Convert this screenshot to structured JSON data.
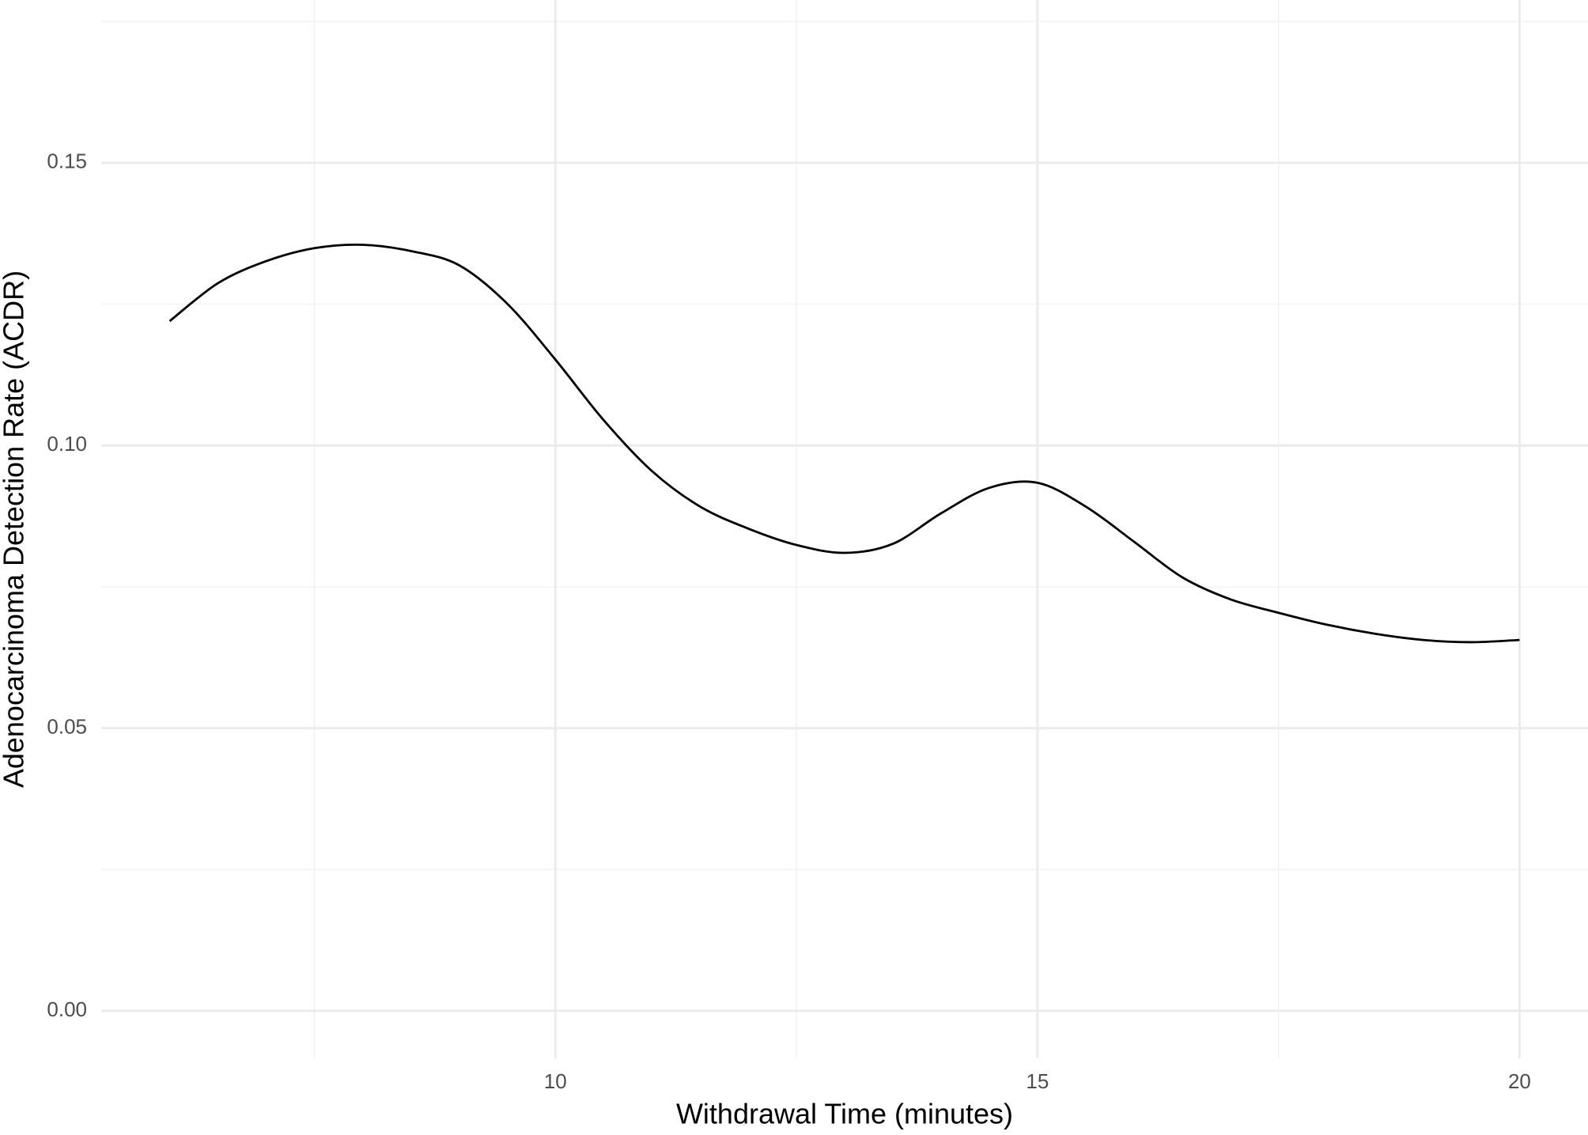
{
  "chart_data": {
    "type": "line",
    "x_label": "Withdrawal Time (minutes)",
    "y_label": "Adenocarcinoma Detection Rate (ACDR)",
    "x": [
      6,
      6.5,
      7,
      7.5,
      8,
      8.5,
      9,
      9.5,
      10,
      10.5,
      11,
      11.5,
      12,
      12.5,
      13,
      13.5,
      14,
      14.5,
      15,
      15.5,
      16,
      16.5,
      17,
      17.5,
      18,
      18.5,
      19,
      19.5,
      20
    ],
    "series": [
      {
        "color": "#000000",
        "values": [
          0.122,
          0.1287,
          0.1326,
          0.1349,
          0.1355,
          0.1344,
          0.1319,
          0.1251,
          0.1152,
          0.1045,
          0.0955,
          0.0892,
          0.0853,
          0.0824,
          0.081,
          0.0826,
          0.088,
          0.0925,
          0.0934,
          0.0892,
          0.083,
          0.0767,
          0.0728,
          0.0704,
          0.0683,
          0.0667,
          0.0656,
          0.0652,
          0.0656
        ]
      }
    ],
    "xlim": [
      5.29,
      20.71
    ],
    "ylim": [
      -0.0084,
      0.1788
    ],
    "xticks": [
      10,
      15,
      20
    ],
    "yticks": [
      {
        "value": 0,
        "label": "0.00"
      },
      {
        "value": 0.05,
        "label": "0.05"
      },
      {
        "value": 0.1,
        "label": "0.10"
      },
      {
        "value": 0.15,
        "label": "0.15"
      }
    ],
    "grid": true
  }
}
